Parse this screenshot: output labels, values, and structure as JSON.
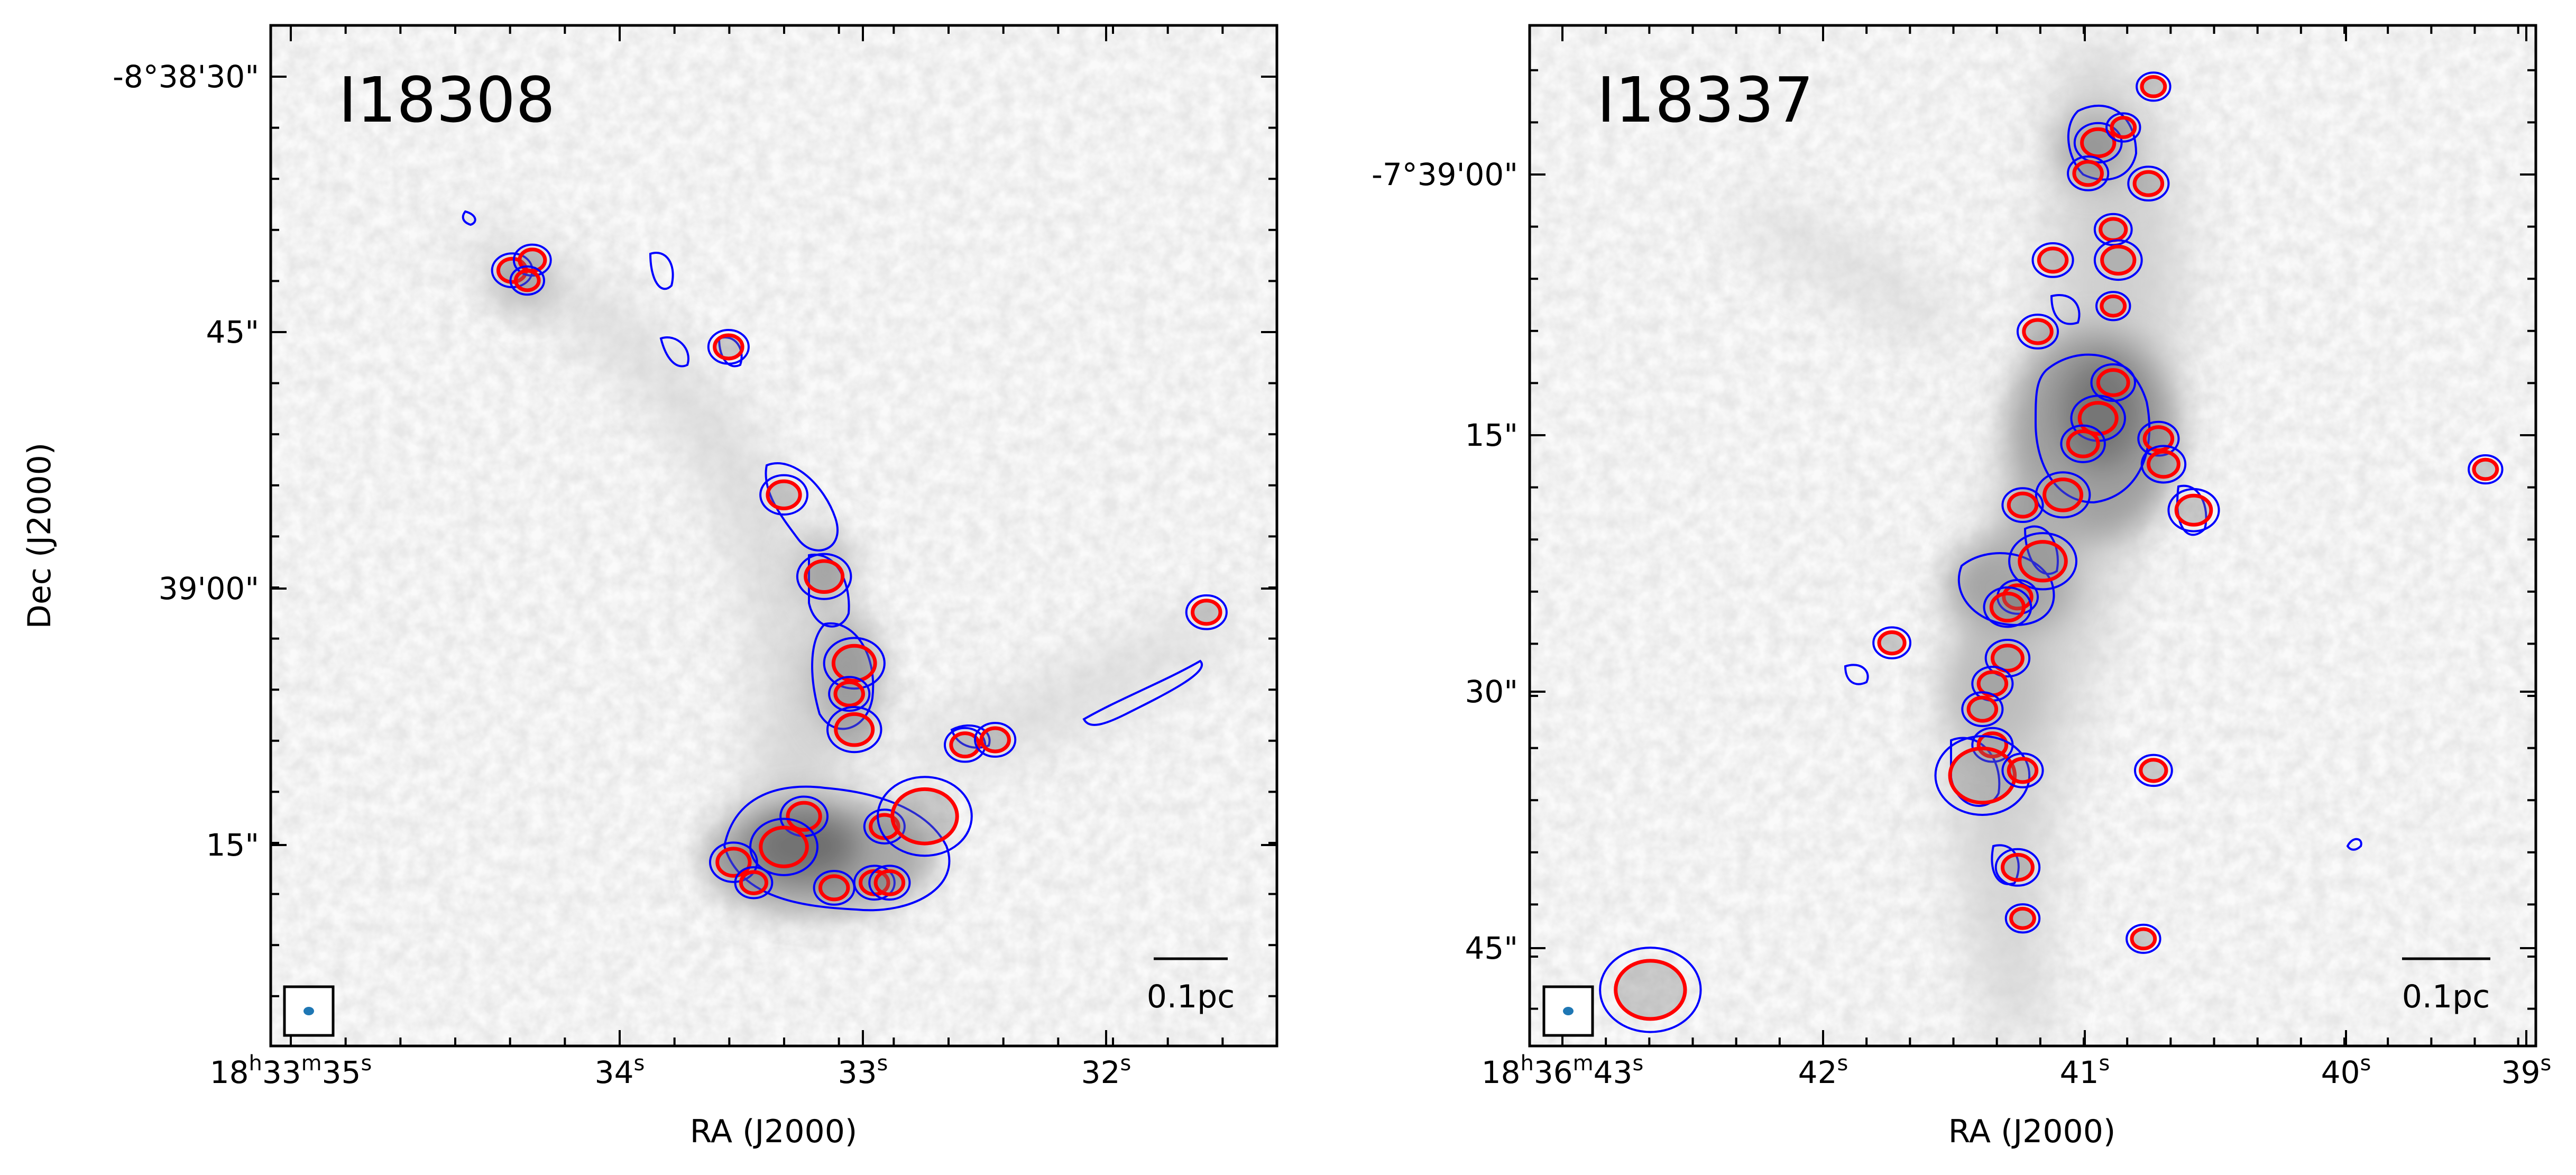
{
  "figure": {
    "colors": {
      "frame": "#000000",
      "contour_low": "#0000ff",
      "contour_high": "#ff0000",
      "beam": "#1f77b4",
      "background_map": "#c8c8c8"
    }
  },
  "chart_data": [
    {
      "type": "image",
      "title": "I18308",
      "xlabel": "RA (J2000)",
      "ylabel": "Dec (J2000)",
      "x_tick_labels": [
        {
          "parts": [
            {
              "t": "18"
            },
            {
              "t": "h",
              "sup": true
            },
            {
              "t": "33"
            },
            {
              "t": "m",
              "sup": true
            },
            {
              "t": "35"
            },
            {
              "t": "s",
              "sup": true
            }
          ]
        },
        {
          "parts": [
            {
              "t": "34"
            },
            {
              "t": "s",
              "sup": true
            }
          ]
        },
        {
          "parts": [
            {
              "t": "33"
            },
            {
              "t": "s",
              "sup": true
            }
          ]
        },
        {
          "parts": [
            {
              "t": "32"
            },
            {
              "t": "s",
              "sup": true
            }
          ]
        }
      ],
      "y_tick_labels": [
        "-8°38'30\"",
        "45\"",
        "39'00\"",
        "15\""
      ],
      "scalebar_label": "0.1pc",
      "sources": [
        {
          "x": 0.24,
          "y": 0.24,
          "r": 0.012
        },
        {
          "x": 0.26,
          "y": 0.23,
          "r": 0.011
        },
        {
          "x": 0.255,
          "y": 0.25,
          "r": 0.01
        },
        {
          "x": 0.455,
          "y": 0.315,
          "r": 0.012
        },
        {
          "x": 0.51,
          "y": 0.46,
          "r": 0.014
        },
        {
          "x": 0.55,
          "y": 0.54,
          "r": 0.016
        },
        {
          "x": 0.58,
          "y": 0.625,
          "r": 0.018
        },
        {
          "x": 0.575,
          "y": 0.655,
          "r": 0.012
        },
        {
          "x": 0.58,
          "y": 0.69,
          "r": 0.016
        },
        {
          "x": 0.69,
          "y": 0.705,
          "r": 0.012
        },
        {
          "x": 0.72,
          "y": 0.7,
          "r": 0.012
        },
        {
          "x": 0.93,
          "y": 0.575,
          "r": 0.012
        },
        {
          "x": 0.53,
          "y": 0.775,
          "r": 0.014
        },
        {
          "x": 0.46,
          "y": 0.82,
          "r": 0.014
        },
        {
          "x": 0.51,
          "y": 0.805,
          "r": 0.02
        },
        {
          "x": 0.48,
          "y": 0.84,
          "r": 0.011
        },
        {
          "x": 0.56,
          "y": 0.845,
          "r": 0.012
        },
        {
          "x": 0.6,
          "y": 0.84,
          "r": 0.012
        },
        {
          "x": 0.615,
          "y": 0.84,
          "r": 0.012
        },
        {
          "x": 0.61,
          "y": 0.785,
          "r": 0.012
        },
        {
          "x": 0.65,
          "y": 0.775,
          "r": 0.028
        }
      ]
    },
    {
      "type": "image",
      "title": "I18337",
      "xlabel": "RA (J2000)",
      "ylabel": "",
      "x_tick_labels": [
        {
          "parts": [
            {
              "t": "18"
            },
            {
              "t": "h",
              "sup": true
            },
            {
              "t": "36"
            },
            {
              "t": "m",
              "sup": true
            },
            {
              "t": "43"
            },
            {
              "t": "s",
              "sup": true
            }
          ]
        },
        {
          "parts": [
            {
              "t": "42"
            },
            {
              "t": "s",
              "sup": true
            }
          ]
        },
        {
          "parts": [
            {
              "t": "41"
            },
            {
              "t": "s",
              "sup": true
            }
          ]
        },
        {
          "parts": [
            {
              "t": "40"
            },
            {
              "t": "s",
              "sup": true
            }
          ]
        },
        {
          "parts": [
            {
              "t": "39"
            },
            {
              "t": "s",
              "sup": true
            }
          ]
        }
      ],
      "y_tick_labels": [
        "-7°39'00\"",
        "15\"",
        "30\"",
        "45\""
      ],
      "scalebar_label": "0.1pc",
      "sources": [
        {
          "x": 0.565,
          "y": 0.115,
          "r": 0.014
        },
        {
          "x": 0.59,
          "y": 0.1,
          "r": 0.01
        },
        {
          "x": 0.555,
          "y": 0.145,
          "r": 0.012
        },
        {
          "x": 0.615,
          "y": 0.155,
          "r": 0.012
        },
        {
          "x": 0.58,
          "y": 0.2,
          "r": 0.011
        },
        {
          "x": 0.585,
          "y": 0.23,
          "r": 0.014
        },
        {
          "x": 0.52,
          "y": 0.23,
          "r": 0.012
        },
        {
          "x": 0.58,
          "y": 0.275,
          "r": 0.01
        },
        {
          "x": 0.505,
          "y": 0.3,
          "r": 0.012
        },
        {
          "x": 0.58,
          "y": 0.35,
          "r": 0.013
        },
        {
          "x": 0.565,
          "y": 0.385,
          "r": 0.016
        },
        {
          "x": 0.55,
          "y": 0.41,
          "r": 0.013
        },
        {
          "x": 0.625,
          "y": 0.405,
          "r": 0.012
        },
        {
          "x": 0.63,
          "y": 0.43,
          "r": 0.013
        },
        {
          "x": 0.53,
          "y": 0.46,
          "r": 0.016
        },
        {
          "x": 0.49,
          "y": 0.47,
          "r": 0.012
        },
        {
          "x": 0.66,
          "y": 0.475,
          "r": 0.015
        },
        {
          "x": 0.51,
          "y": 0.525,
          "r": 0.02
        },
        {
          "x": 0.485,
          "y": 0.56,
          "r": 0.012
        },
        {
          "x": 0.475,
          "y": 0.57,
          "r": 0.014
        },
        {
          "x": 0.475,
          "y": 0.62,
          "r": 0.013
        },
        {
          "x": 0.46,
          "y": 0.645,
          "r": 0.012
        },
        {
          "x": 0.45,
          "y": 0.67,
          "r": 0.012
        },
        {
          "x": 0.46,
          "y": 0.705,
          "r": 0.012
        },
        {
          "x": 0.45,
          "y": 0.735,
          "r": 0.028
        },
        {
          "x": 0.49,
          "y": 0.73,
          "r": 0.012
        },
        {
          "x": 0.485,
          "y": 0.825,
          "r": 0.013
        },
        {
          "x": 0.49,
          "y": 0.875,
          "r": 0.01
        },
        {
          "x": 0.36,
          "y": 0.605,
          "r": 0.011
        },
        {
          "x": 0.62,
          "y": 0.73,
          "r": 0.011
        },
        {
          "x": 0.61,
          "y": 0.895,
          "r": 0.01
        },
        {
          "x": 0.95,
          "y": 0.435,
          "r": 0.01
        },
        {
          "x": 0.62,
          "y": 0.06,
          "r": 0.01
        },
        {
          "x": 0.12,
          "y": 0.945,
          "r": 0.03
        }
      ]
    }
  ]
}
